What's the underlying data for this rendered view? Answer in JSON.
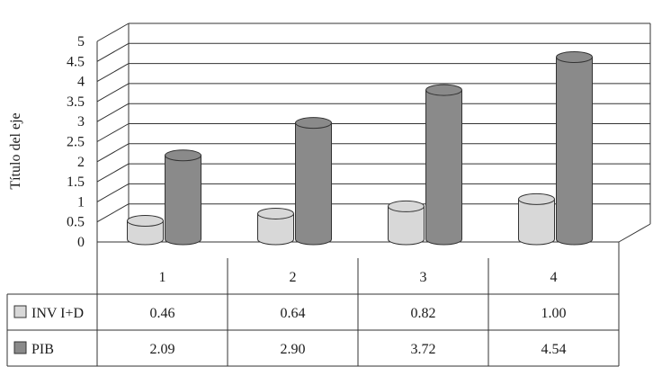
{
  "chart_data": {
    "type": "bar",
    "style": "3d-cylinder",
    "ylabel": "Título del eje",
    "xlabel": "",
    "ylim": [
      0,
      5
    ],
    "yticks": [
      "0",
      "0.5",
      "1",
      "1.5",
      "2",
      "2.5",
      "3",
      "3.5",
      "4",
      "4.5",
      "5"
    ],
    "grid": true,
    "legend": "data-table-below",
    "categories": [
      "1",
      "2",
      "3",
      "4"
    ],
    "series": [
      {
        "name": "INV I+D",
        "values": [
          0.46,
          0.64,
          0.82,
          1.0
        ],
        "labels": [
          "0.46",
          "0.64",
          "0.82",
          "1.00"
        ],
        "color": "#d8d8d8"
      },
      {
        "name": "PIB",
        "values": [
          2.09,
          2.9,
          3.72,
          4.54
        ],
        "labels": [
          "2.09",
          "2.90",
          "3.72",
          "4.54"
        ],
        "color": "#8a8a8a"
      }
    ]
  }
}
